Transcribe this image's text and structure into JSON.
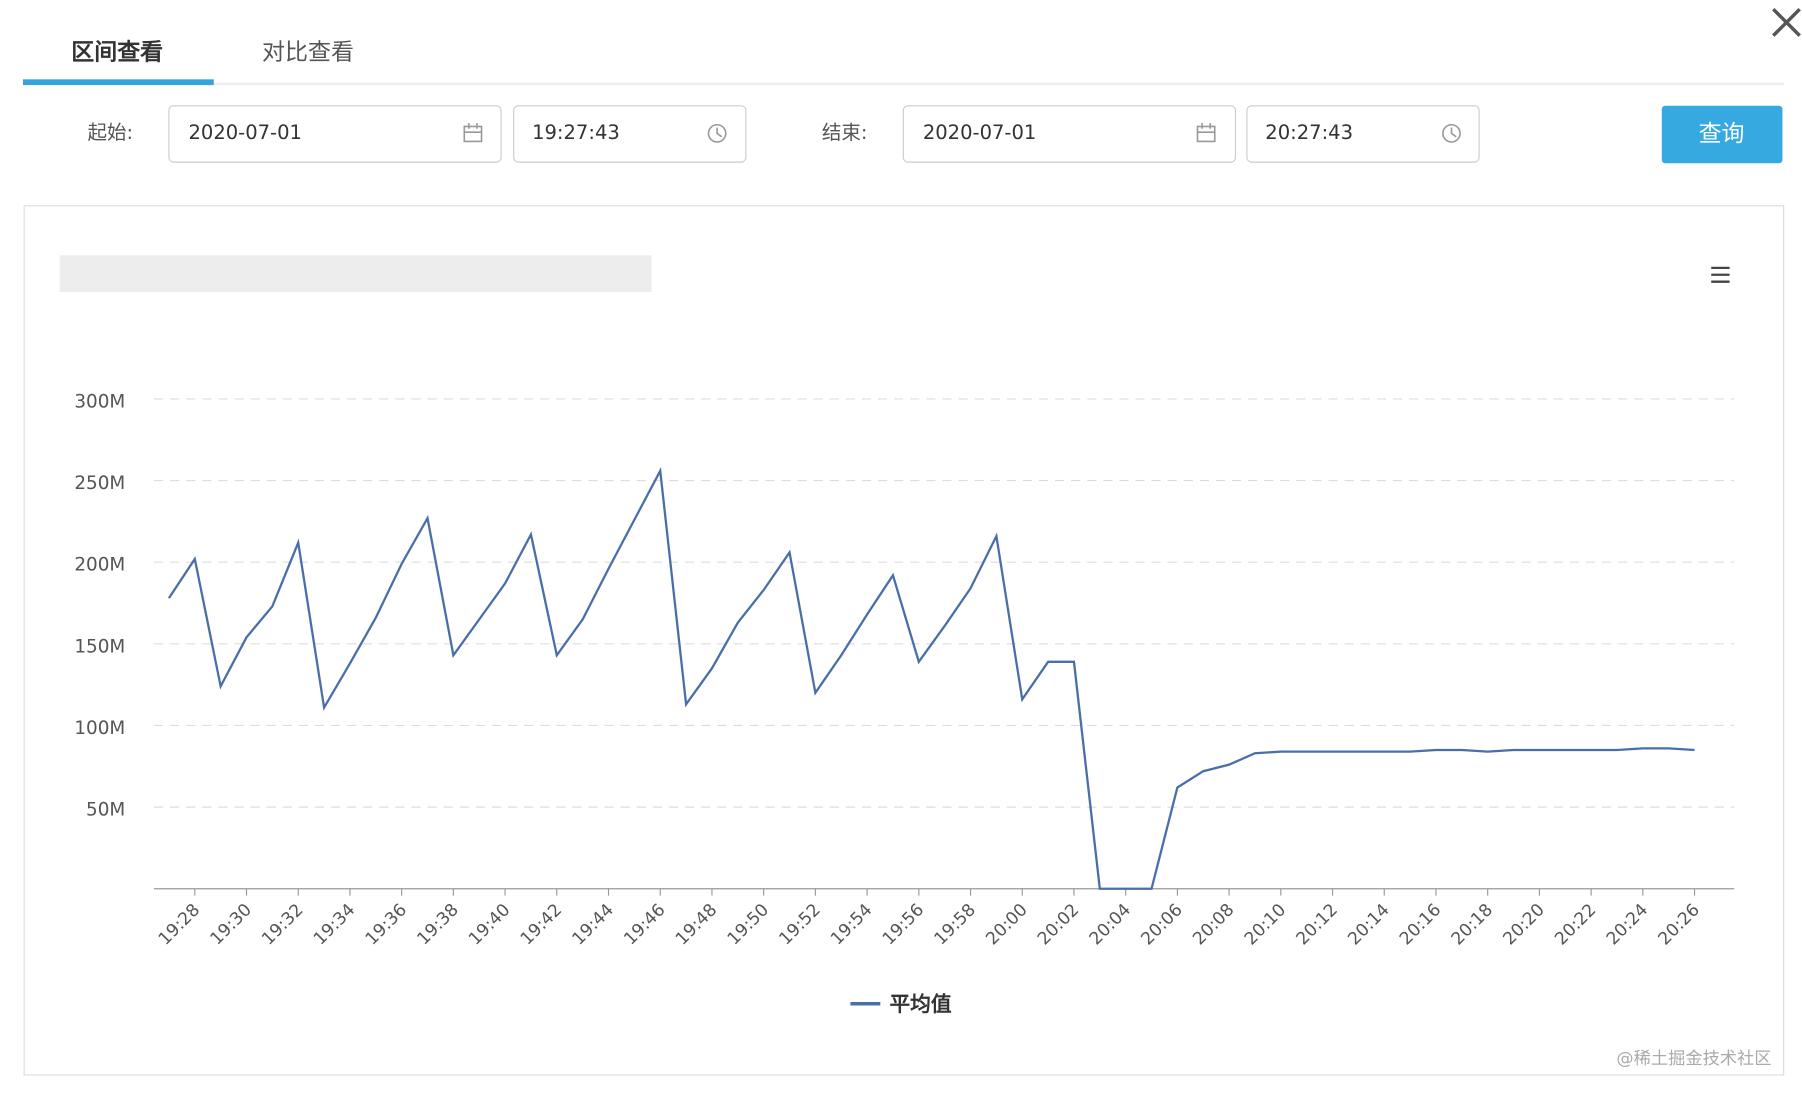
{
  "tabs": [
    "区间查看",
    "对比查看"
  ],
  "form": {
    "start_label": "起始:",
    "start_date": "2020-07-01",
    "start_time": "19:27:43",
    "end_label": "结束:",
    "end_date": "2020-07-01",
    "end_time": "20:27:43",
    "button": "查询"
  },
  "chart_data": {
    "type": "line",
    "categories": [
      null,
      "19:28",
      null,
      "19:30",
      null,
      "19:32",
      null,
      "19:34",
      null,
      "19:36",
      null,
      "19:38",
      null,
      "19:40",
      null,
      "19:42",
      null,
      "19:44",
      null,
      "19:46",
      null,
      "19:48",
      null,
      "19:50",
      null,
      "19:52",
      null,
      "19:54",
      null,
      "19:56",
      null,
      "19:58",
      null,
      "20:00",
      null,
      "20:02",
      null,
      "20:04",
      null,
      "20:06",
      null,
      "20:08",
      null,
      "20:10",
      null,
      "20:12",
      null,
      "20:14",
      null,
      "20:16",
      null,
      "20:18",
      null,
      "20:20",
      null,
      "20:22",
      null,
      "20:24",
      null,
      "20:26"
    ],
    "series": [
      {
        "name": "平均值",
        "color": "#4a6fa8",
        "values": [
          178,
          202,
          124,
          154,
          173,
          212,
          111,
          138,
          166,
          199,
          227,
          143,
          165,
          187,
          217,
          143,
          165,
          196,
          226,
          256,
          113,
          135,
          163,
          183,
          206,
          120,
          143,
          168,
          192,
          139,
          161,
          184,
          216,
          116,
          139,
          139,
          0,
          0,
          0,
          62,
          72,
          76,
          83,
          84,
          84,
          84,
          84,
          84,
          84,
          85,
          85,
          84,
          85,
          85,
          85,
          85,
          85,
          86,
          86,
          85
        ]
      }
    ],
    "ylim": [
      0,
      300
    ],
    "yticks": [
      {
        "value": 50,
        "label": "50M"
      },
      {
        "value": 100,
        "label": "100M"
      },
      {
        "value": 150,
        "label": "150M"
      },
      {
        "value": 200,
        "label": "200M"
      },
      {
        "value": 250,
        "label": "250M"
      },
      {
        "value": 300,
        "label": "300M"
      }
    ],
    "grid": true,
    "legend": "bottom"
  },
  "watermark": "@稀土掘金技术社区"
}
